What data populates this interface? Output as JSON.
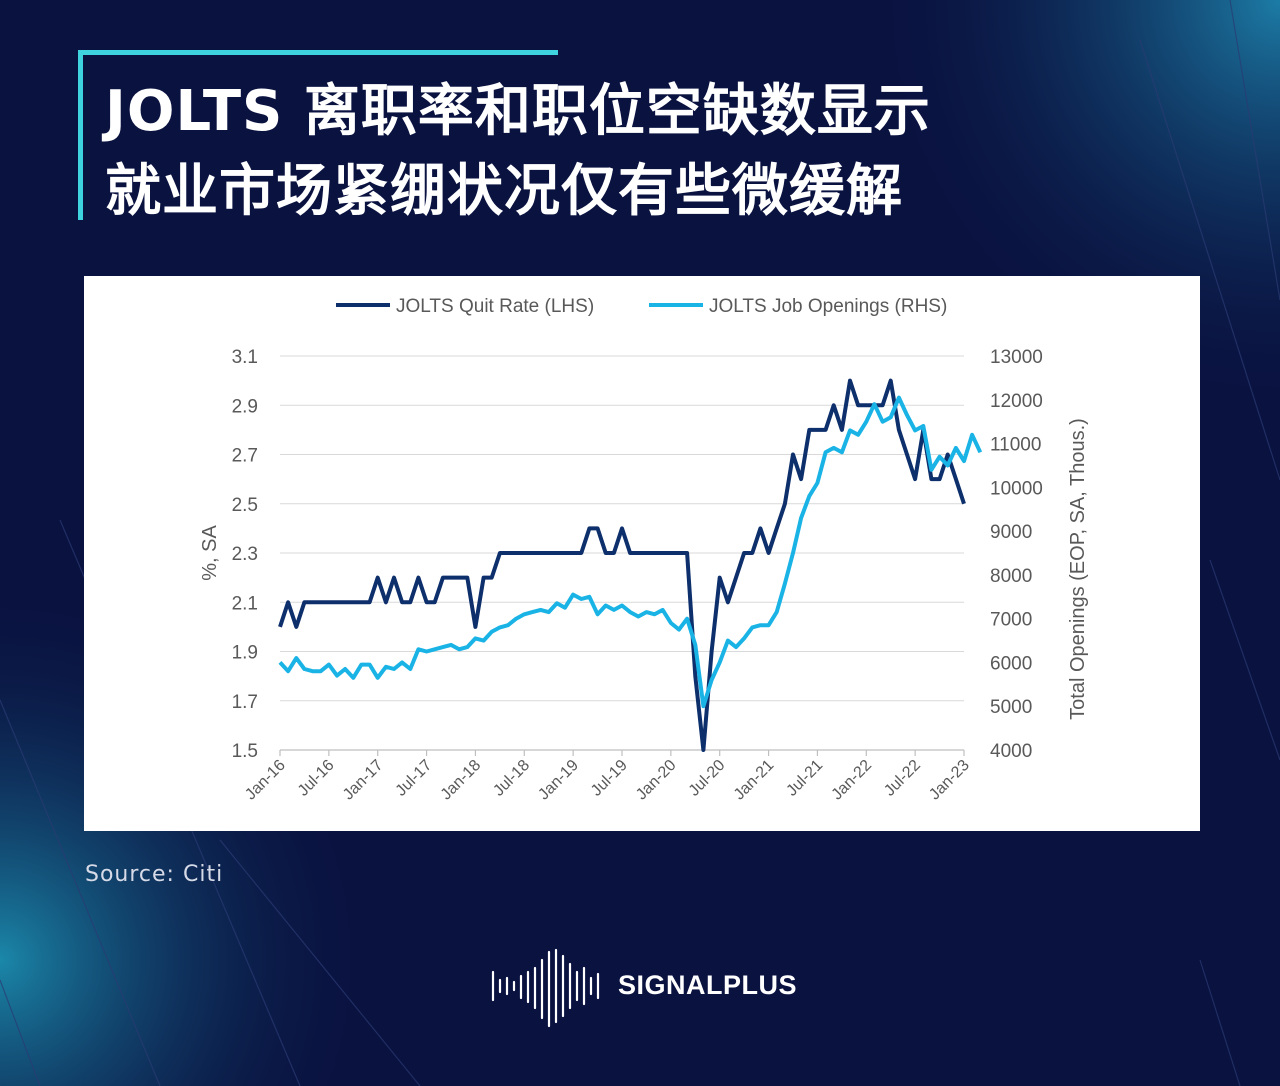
{
  "title": {
    "line1": "JOLTS 离职率和职位空缺数显示",
    "line2": "就业市场紧绷状况仅有些微缓解"
  },
  "source": "Source:  Citi",
  "brand": {
    "name": "SIGNALPLUS",
    "logo_icon": "soundwave-logo-icon"
  },
  "colors": {
    "background": "#0a1240",
    "accent": "#3fd3e0",
    "quit_rate": "#0d2f6b",
    "job_openings": "#1ab3e6"
  },
  "chart_data": {
    "type": "line",
    "legend_position": "top",
    "grid": true,
    "x_tick_labels": [
      "Jan-16",
      "Jul-16",
      "Jan-17",
      "Jul-17",
      "Jan-18",
      "Jul-18",
      "Jan-19",
      "Jul-19",
      "Jan-20",
      "Jul-20",
      "Jan-21",
      "Jul-21",
      "Jan-22",
      "Jul-22",
      "Jan-23"
    ],
    "x_start": "Jan-16",
    "y_left": {
      "label": "%, SA",
      "ylim": [
        1.5,
        3.1
      ],
      "ticks": [
        1.5,
        1.7,
        1.9,
        2.1,
        2.3,
        2.5,
        2.7,
        2.9,
        3.1
      ]
    },
    "y_right": {
      "label": "Total Openings (EOP, SA, Thous.)",
      "ylim": [
        4000,
        13000
      ],
      "ticks": [
        4000,
        5000,
        6000,
        7000,
        8000,
        9000,
        10000,
        11000,
        12000,
        13000
      ]
    },
    "series": [
      {
        "name": "JOLTS Quit Rate (LHS)",
        "axis": "left",
        "values": [
          2.0,
          2.1,
          2.0,
          2.1,
          2.1,
          2.1,
          2.1,
          2.1,
          2.1,
          2.1,
          2.1,
          2.1,
          2.2,
          2.1,
          2.2,
          2.1,
          2.1,
          2.2,
          2.1,
          2.1,
          2.2,
          2.2,
          2.2,
          2.2,
          2.0,
          2.2,
          2.2,
          2.3,
          2.3,
          2.3,
          2.3,
          2.3,
          2.3,
          2.3,
          2.3,
          2.3,
          2.3,
          2.3,
          2.4,
          2.4,
          2.3,
          2.3,
          2.4,
          2.3,
          2.3,
          2.3,
          2.3,
          2.3,
          2.3,
          2.3,
          2.3,
          1.8,
          1.5,
          1.9,
          2.2,
          2.1,
          2.2,
          2.3,
          2.3,
          2.4,
          2.3,
          2.4,
          2.5,
          2.7,
          2.6,
          2.8,
          2.8,
          2.8,
          2.9,
          2.8,
          3.0,
          2.9,
          2.9,
          2.9,
          2.9,
          3.0,
          2.8,
          2.7,
          2.6,
          2.8,
          2.6,
          2.6,
          2.7,
          2.6,
          2.5
        ]
      },
      {
        "name": "JOLTS Job Openings (RHS)",
        "axis": "right",
        "values": [
          6000,
          5800,
          6100,
          5850,
          5800,
          5800,
          5950,
          5700,
          5850,
          5650,
          5950,
          5950,
          5650,
          5900,
          5850,
          6000,
          5850,
          6300,
          6250,
          6300,
          6350,
          6400,
          6300,
          6350,
          6550,
          6500,
          6700,
          6800,
          6850,
          7000,
          7100,
          7150,
          7200,
          7150,
          7350,
          7250,
          7550,
          7450,
          7500,
          7100,
          7300,
          7200,
          7300,
          7150,
          7050,
          7150,
          7100,
          7200,
          6900,
          6750,
          7000,
          6400,
          5000,
          5600,
          6000,
          6500,
          6350,
          6550,
          6800,
          6850,
          6850,
          7150,
          7800,
          8500,
          9300,
          9800,
          10100,
          10800,
          10900,
          10800,
          11300,
          11200,
          11500,
          11900,
          11500,
          11600,
          12050,
          11650,
          11300,
          11400,
          10400,
          10700,
          10500,
          10900,
          10600,
          11200,
          10800
        ]
      }
    ]
  }
}
